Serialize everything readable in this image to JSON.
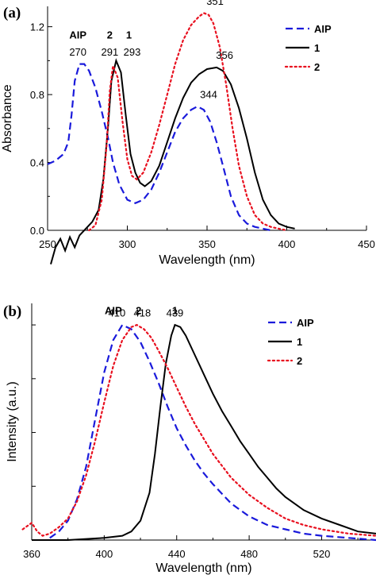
{
  "chart_data": [
    {
      "type": "line",
      "panel_label": "(a)",
      "xlabel": "Wavelength (nm)",
      "ylabel": "Absorbance",
      "xlim": [
        250,
        450
      ],
      "ylim": [
        0,
        1.32
      ],
      "xticks": [
        250,
        300,
        350,
        400,
        450
      ],
      "yticks": [
        0.0,
        0.4,
        0.8,
        1.2
      ],
      "ytick_labels": [
        "0.0",
        "0.4",
        "0.8",
        "1.2"
      ],
      "grid": false,
      "legend_position": "top-right",
      "series": [
        {
          "name": "AIP",
          "color": "#1a1adb",
          "style": "dashed",
          "x": [
            250,
            255,
            260,
            263,
            265,
            267,
            270,
            273,
            276,
            280,
            284,
            288,
            291,
            295,
            300,
            305,
            310,
            315,
            320,
            325,
            330,
            335,
            340,
            344,
            348,
            352,
            356,
            360,
            365,
            370,
            375,
            380,
            385,
            390
          ],
          "y": [
            0.39,
            0.41,
            0.45,
            0.52,
            0.68,
            0.88,
            0.98,
            0.98,
            0.94,
            0.84,
            0.7,
            0.54,
            0.4,
            0.27,
            0.18,
            0.16,
            0.18,
            0.24,
            0.34,
            0.46,
            0.58,
            0.66,
            0.71,
            0.73,
            0.71,
            0.64,
            0.52,
            0.38,
            0.2,
            0.09,
            0.04,
            0.02,
            0.01,
            0.0
          ]
        },
        {
          "name": "1",
          "color": "#000000",
          "style": "solid",
          "x": [
            252,
            255,
            258,
            261,
            264,
            267,
            270,
            274,
            278,
            282,
            285,
            288,
            290,
            293,
            296,
            299,
            302,
            305,
            308,
            311,
            315,
            320,
            325,
            330,
            335,
            340,
            345,
            350,
            356,
            360,
            365,
            370,
            375,
            380,
            385,
            390,
            395,
            400,
            405
          ],
          "y": [
            -0.2,
            -0.1,
            -0.05,
            -0.12,
            -0.04,
            -0.1,
            -0.03,
            0.01,
            0.05,
            0.12,
            0.3,
            0.62,
            0.88,
            1.0,
            0.93,
            0.68,
            0.45,
            0.34,
            0.28,
            0.26,
            0.29,
            0.38,
            0.52,
            0.66,
            0.78,
            0.87,
            0.92,
            0.95,
            0.96,
            0.94,
            0.86,
            0.72,
            0.54,
            0.34,
            0.18,
            0.09,
            0.04,
            0.02,
            0.01
          ]
        },
        {
          "name": "2",
          "color": "#e8101f",
          "style": "dotted",
          "x": [
            276,
            280,
            284,
            287,
            289,
            291,
            294,
            297,
            300,
            303,
            306,
            310,
            315,
            320,
            325,
            330,
            335,
            340,
            345,
            348,
            351,
            354,
            358,
            362,
            366,
            370,
            375,
            380,
            385,
            390,
            395,
            400
          ],
          "y": [
            0.0,
            0.03,
            0.18,
            0.5,
            0.82,
            0.97,
            0.9,
            0.64,
            0.42,
            0.32,
            0.3,
            0.34,
            0.46,
            0.62,
            0.8,
            0.98,
            1.12,
            1.21,
            1.26,
            1.28,
            1.27,
            1.22,
            1.08,
            0.86,
            0.6,
            0.38,
            0.2,
            0.09,
            0.04,
            0.02,
            0.01,
            0.0
          ]
        }
      ],
      "annotations": [
        {
          "text": "AIP",
          "bold": true,
          "x": 269,
          "y": 1.13
        },
        {
          "text": "2",
          "bold": true,
          "x": 289,
          "y": 1.13
        },
        {
          "text": "1",
          "bold": true,
          "x": 301,
          "y": 1.13
        },
        {
          "text": "270",
          "bold": false,
          "x": 269,
          "y": 1.03
        },
        {
          "text": "291",
          "bold": false,
          "x": 289,
          "y": 1.03
        },
        {
          "text": "293",
          "bold": false,
          "x": 303,
          "y": 1.03
        },
        {
          "text": "351",
          "bold": false,
          "x": 355,
          "y": 1.33
        },
        {
          "text": "356",
          "bold": false,
          "x": 361,
          "y": 1.01
        },
        {
          "text": "344",
          "bold": false,
          "x": 351,
          "y": 0.78
        }
      ]
    },
    {
      "type": "line",
      "panel_label": "(b)",
      "xlabel": "Wavelength (nm)",
      "ylabel": "Intensity (a.u.)",
      "xlim": [
        360,
        550
      ],
      "ylim": [
        0,
        1.1
      ],
      "xticks": [
        360,
        400,
        440,
        480,
        520
      ],
      "yticks": [],
      "grid": false,
      "legend_position": "top-right",
      "series": [
        {
          "name": "AIP",
          "color": "#1a1adb",
          "style": "dashed",
          "x": [
            370,
            375,
            380,
            385,
            390,
            395,
            400,
            405,
            410,
            415,
            420,
            425,
            430,
            435,
            440,
            445,
            450,
            455,
            460,
            470,
            480,
            490,
            500,
            510,
            520,
            535,
            550
          ],
          "y": [
            0.01,
            0.04,
            0.09,
            0.19,
            0.34,
            0.56,
            0.78,
            0.93,
            1.0,
            0.98,
            0.92,
            0.83,
            0.73,
            0.62,
            0.52,
            0.44,
            0.37,
            0.31,
            0.26,
            0.17,
            0.11,
            0.07,
            0.05,
            0.03,
            0.02,
            0.01,
            0.0
          ]
        },
        {
          "name": "1",
          "color": "#000000",
          "style": "solid",
          "x": [
            360,
            380,
            400,
            410,
            415,
            420,
            425,
            428,
            431,
            434,
            437,
            439,
            442,
            445,
            450,
            455,
            460,
            465,
            470,
            475,
            480,
            485,
            490,
            495,
            500,
            510,
            520,
            530,
            540,
            550
          ],
          "y": [
            0.0,
            0.0,
            0.01,
            0.02,
            0.04,
            0.09,
            0.22,
            0.4,
            0.62,
            0.82,
            0.95,
            1.0,
            0.99,
            0.95,
            0.86,
            0.77,
            0.68,
            0.6,
            0.53,
            0.46,
            0.4,
            0.34,
            0.29,
            0.24,
            0.2,
            0.14,
            0.1,
            0.07,
            0.04,
            0.03
          ]
        },
        {
          "name": "2",
          "color": "#e8101f",
          "style": "dotted",
          "x": [
            355,
            360,
            363,
            366,
            370,
            375,
            380,
            385,
            390,
            395,
            400,
            405,
            410,
            415,
            418,
            422,
            426,
            430,
            435,
            440,
            445,
            450,
            455,
            460,
            470,
            480,
            490,
            500,
            510,
            520,
            535,
            550
          ],
          "y": [
            0.05,
            0.08,
            0.04,
            0.02,
            0.03,
            0.06,
            0.1,
            0.18,
            0.3,
            0.46,
            0.64,
            0.81,
            0.93,
            0.99,
            1.0,
            0.98,
            0.94,
            0.88,
            0.8,
            0.71,
            0.62,
            0.54,
            0.47,
            0.4,
            0.29,
            0.21,
            0.15,
            0.1,
            0.07,
            0.05,
            0.03,
            0.02
          ]
        }
      ],
      "annotations": [
        {
          "text": "AIP",
          "bold": true,
          "x": 405,
          "y": 1.05
        },
        {
          "text": "2",
          "bold": true,
          "x": 419,
          "y": 1.05
        },
        {
          "text": "1",
          "bold": true,
          "x": 439,
          "y": 1.05
        },
        {
          "text": "410",
          "bold": false,
          "x": 407,
          "y": 1.04
        },
        {
          "text": "418",
          "bold": false,
          "x": 421,
          "y": 1.04
        },
        {
          "text": "439",
          "bold": false,
          "x": 439,
          "y": 1.04
        }
      ]
    }
  ]
}
